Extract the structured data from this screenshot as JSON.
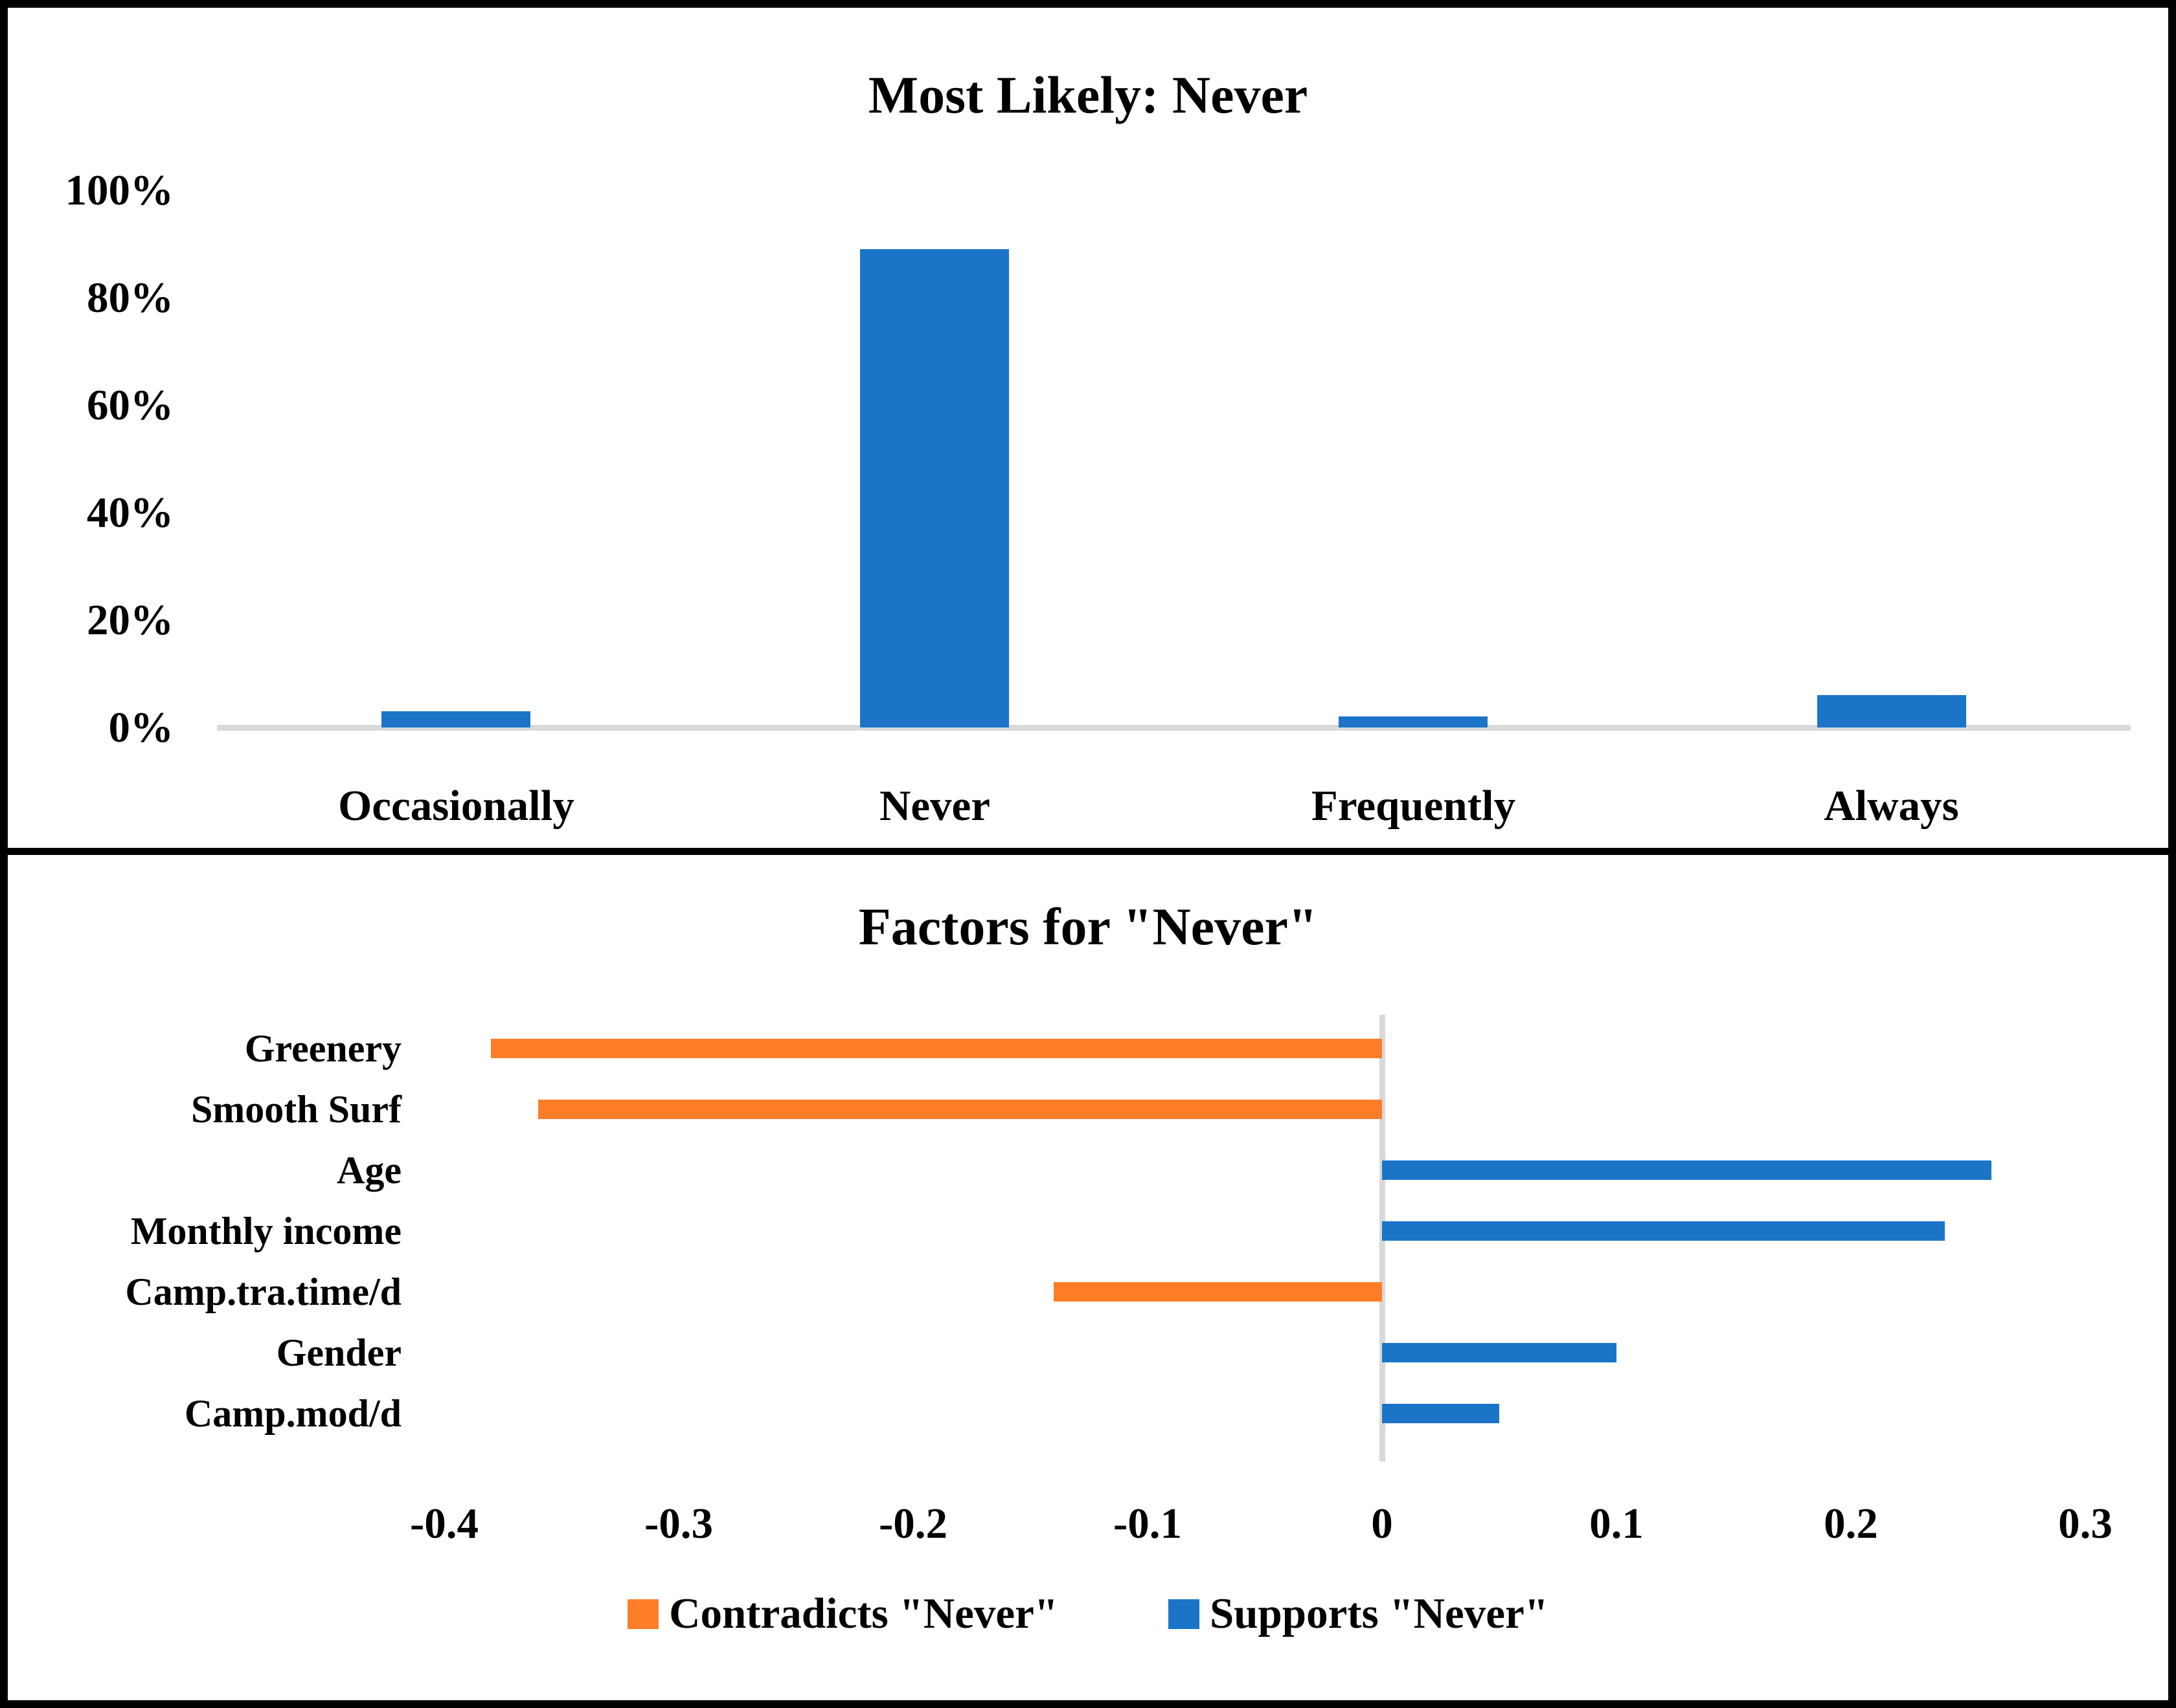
{
  "figure": {
    "background": "#ffffff",
    "border_color": "#000000",
    "divider_color": "#000000"
  },
  "chart_data": [
    {
      "type": "bar",
      "title": "Most Likely: Never",
      "categories": [
        "Occasionally",
        "Never",
        "Frequently",
        "Always"
      ],
      "values": [
        3,
        89,
        2,
        6
      ],
      "unit": "percent",
      "ylim": [
        0,
        100
      ],
      "y_ticks": [
        {
          "label": "0%",
          "value": 0
        },
        {
          "label": "20%",
          "value": 20
        },
        {
          "label": "40%",
          "value": 40
        },
        {
          "label": "60%",
          "value": 60
        },
        {
          "label": "80%",
          "value": 80
        },
        {
          "label": "100%",
          "value": 100
        }
      ],
      "bar_color": "#1B74C8",
      "axis_line_color": "#D9D9D9",
      "grid": false,
      "legend": null
    },
    {
      "type": "bar-horizontal",
      "title": "Factors for \"Never\"",
      "categories": [
        "Greenery",
        "Smooth Surf",
        "Age",
        "Monthly income",
        "Camp.tra.time/d",
        "Gender",
        "Camp.mod/d"
      ],
      "values": [
        -0.38,
        -0.36,
        0.26,
        0.24,
        -0.14,
        0.1,
        0.05
      ],
      "xlim": [
        -0.4,
        0.3
      ],
      "x_ticks": [
        {
          "label": "-0.4",
          "value": -0.4
        },
        {
          "label": "-0.3",
          "value": -0.3
        },
        {
          "label": "-0.2",
          "value": -0.2
        },
        {
          "label": "-0.1",
          "value": -0.1
        },
        {
          "label": "0",
          "value": 0
        },
        {
          "label": "0.1",
          "value": 0.1
        },
        {
          "label": "0.2",
          "value": 0.2
        },
        {
          "label": "0.3",
          "value": 0.3
        }
      ],
      "negative_color": "#FD7E27",
      "positive_color": "#1B74C8",
      "zero_line_color": "#D9D9D9",
      "grid": false,
      "legend_position": "bottom",
      "legend": [
        {
          "label": "Contradicts \"Never\"",
          "color": "#FD7E27",
          "series": "negative"
        },
        {
          "label": "Supports \"Never\"",
          "color": "#1B74C8",
          "series": "positive"
        }
      ]
    }
  ]
}
